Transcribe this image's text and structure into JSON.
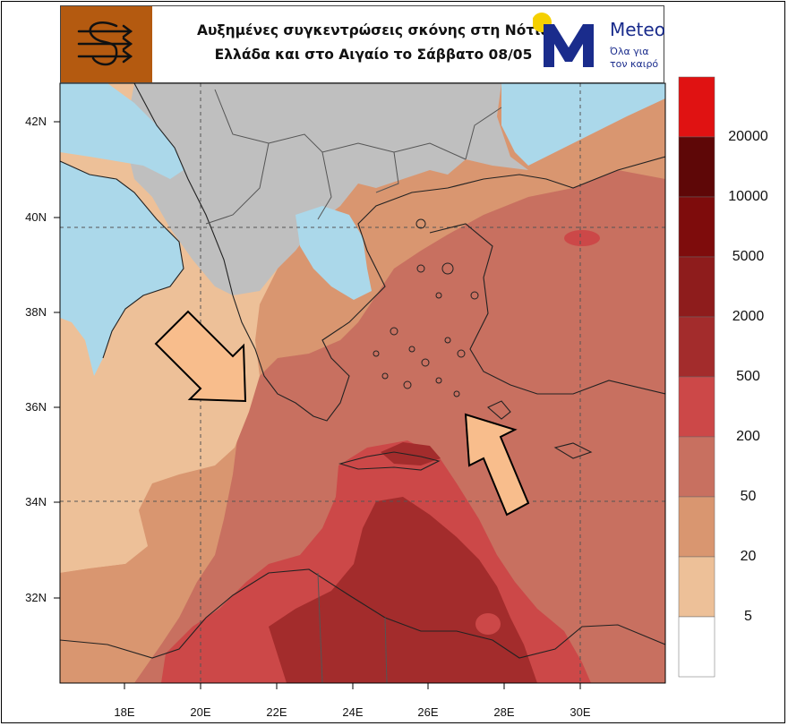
{
  "header": {
    "title_line1": "Αυξημένες συγκεντρώσεις σκόνης στη Νότια",
    "title_line2": "Ελλάδα και στο Αιγαίο το Σάββατο 08/05",
    "brand_name": "Meteo",
    "brand_tagline": "Όλα για τον καιρό"
  },
  "axes": {
    "lat_ticks": [
      "42N",
      "40N",
      "38N",
      "36N",
      "34N",
      "32N"
    ],
    "lon_ticks": [
      "18E",
      "20E",
      "22E",
      "24E",
      "26E",
      "28E",
      "30E"
    ]
  },
  "legend": {
    "labels": [
      "20000",
      "10000",
      "5000",
      "2000",
      "500",
      "200",
      "50",
      "20",
      "5"
    ],
    "colors": [
      "#e01212",
      "#5e0707",
      "#7e0c0c",
      "#8e1c1c",
      "#a32c2c",
      "#cc4848",
      "#c87060",
      "#d99670",
      "#edc098",
      "#ffffff"
    ]
  },
  "map_colors": {
    "land_gray": "#bfbfbf",
    "sea_blue": "#abd8ea",
    "level_5": "#edc098",
    "level_20": "#d99670",
    "level_50": "#c87060",
    "level_200": "#cc4848",
    "level_500": "#a32c2c",
    "arrow_fill": "#f8bd8c",
    "logo_bg": "#b45a10",
    "brand_blue": "#1a2c8c",
    "brand_yellow": "#f5d000"
  },
  "annotations": {
    "arrows": [
      "northwest-arrow",
      "southeast-arrow"
    ]
  }
}
